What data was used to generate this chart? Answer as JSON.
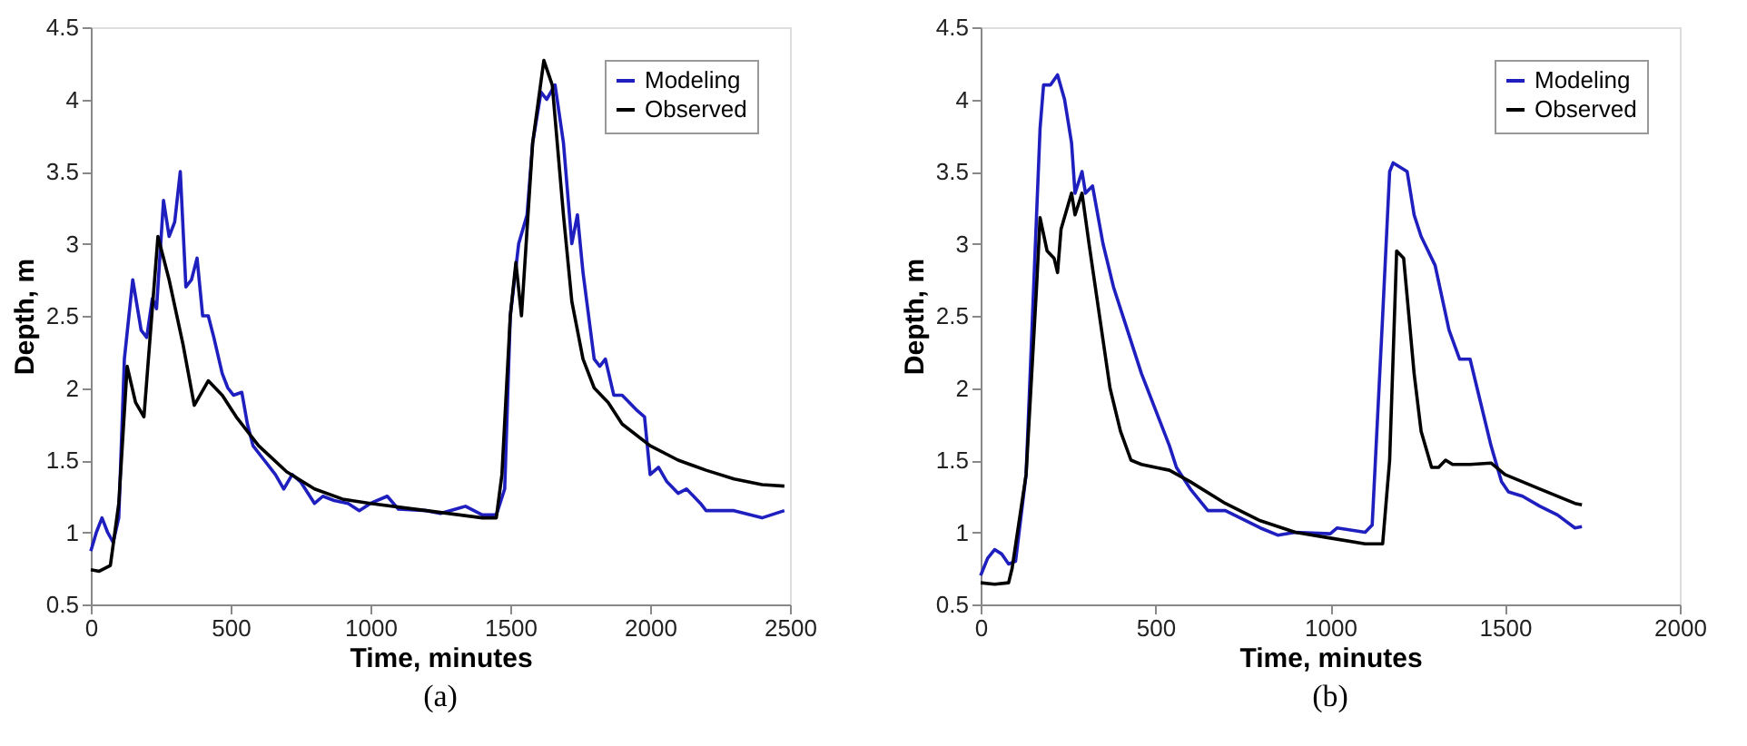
{
  "chart_data": [
    {
      "type": "line",
      "xlabel": "Time, minutes",
      "ylabel": "Depth, m",
      "annotations": [
        "(a)"
      ],
      "xlim": [
        0,
        2500
      ],
      "ylim": [
        0.5,
        4.5
      ],
      "xticks": [
        0,
        500,
        1000,
        1500,
        2000,
        2500
      ],
      "yticks": [
        0.5,
        1,
        1.5,
        2,
        2.5,
        3,
        3.5,
        4,
        4.5
      ],
      "grid": false,
      "legend": "top right",
      "marker": "none",
      "line_style": "solid",
      "series": [
        {
          "name": "Modeling",
          "color": "#1f1fbf",
          "x": [
            0,
            20,
            40,
            60,
            80,
            100,
            120,
            150,
            180,
            200,
            220,
            235,
            260,
            280,
            300,
            320,
            340,
            360,
            380,
            400,
            420,
            440,
            470,
            490,
            510,
            540,
            560,
            580,
            620,
            660,
            690,
            720,
            750,
            800,
            830,
            870,
            920,
            960,
            1000,
            1060,
            1100,
            1200,
            1250,
            1340,
            1400,
            1450,
            1480,
            1500,
            1530,
            1560,
            1580,
            1610,
            1630,
            1660,
            1690,
            1720,
            1740,
            1760,
            1800,
            1820,
            1840,
            1870,
            1900,
            1950,
            1980,
            2000,
            2030,
            2060,
            2100,
            2130,
            2180,
            2200,
            2300,
            2400,
            2480
          ],
          "values": [
            0.87,
            1.0,
            1.1,
            1.0,
            0.93,
            1.1,
            2.2,
            2.75,
            2.4,
            2.35,
            2.62,
            2.55,
            3.3,
            3.05,
            3.15,
            3.5,
            2.7,
            2.75,
            2.9,
            2.5,
            2.5,
            2.35,
            2.1,
            2.0,
            1.95,
            1.97,
            1.75,
            1.6,
            1.5,
            1.4,
            1.3,
            1.4,
            1.35,
            1.2,
            1.25,
            1.22,
            1.2,
            1.15,
            1.2,
            1.25,
            1.16,
            1.15,
            1.13,
            1.18,
            1.12,
            1.12,
            1.3,
            2.5,
            3.0,
            3.2,
            3.7,
            4.05,
            4.0,
            4.1,
            3.7,
            3.0,
            3.2,
            2.8,
            2.2,
            2.15,
            2.2,
            1.95,
            1.95,
            1.85,
            1.8,
            1.4,
            1.45,
            1.35,
            1.27,
            1.3,
            1.2,
            1.15,
            1.15,
            1.1,
            1.15
          ]
        },
        {
          "name": "Observed",
          "color": "#000000",
          "x": [
            0,
            30,
            70,
            100,
            130,
            160,
            190,
            240,
            280,
            330,
            370,
            420,
            470,
            520,
            600,
            700,
            800,
            900,
            1000,
            1200,
            1400,
            1450,
            1470,
            1500,
            1520,
            1540,
            1580,
            1620,
            1650,
            1690,
            1720,
            1760,
            1800,
            1850,
            1900,
            2000,
            2100,
            2200,
            2300,
            2400,
            2480
          ],
          "values": [
            0.74,
            0.73,
            0.77,
            1.2,
            2.15,
            1.9,
            1.8,
            3.05,
            2.75,
            2.3,
            1.88,
            2.05,
            1.95,
            1.8,
            1.6,
            1.42,
            1.3,
            1.23,
            1.2,
            1.15,
            1.1,
            1.1,
            1.4,
            2.5,
            2.87,
            2.5,
            3.7,
            4.27,
            4.1,
            3.2,
            2.6,
            2.2,
            2.0,
            1.9,
            1.75,
            1.6,
            1.5,
            1.43,
            1.37,
            1.33,
            1.32
          ]
        }
      ]
    },
    {
      "type": "line",
      "xlabel": "Time, minutes",
      "ylabel": "Depth, m",
      "annotations": [
        "(b)"
      ],
      "xlim": [
        0,
        2000
      ],
      "ylim": [
        0.5,
        4.5
      ],
      "xticks": [
        0,
        500,
        1000,
        1500,
        2000
      ],
      "yticks": [
        0.5,
        1,
        1.5,
        2,
        2.5,
        3,
        3.5,
        4,
        4.5
      ],
      "grid": false,
      "legend": "top right",
      "marker": "none",
      "line_style": "solid",
      "series": [
        {
          "name": "Modeling",
          "color": "#1f1fbf",
          "x": [
            0,
            20,
            40,
            60,
            80,
            100,
            130,
            150,
            170,
            180,
            200,
            220,
            240,
            260,
            270,
            290,
            300,
            320,
            350,
            380,
            420,
            460,
            500,
            540,
            560,
            600,
            650,
            700,
            800,
            850,
            900,
            1000,
            1020,
            1100,
            1120,
            1150,
            1170,
            1180,
            1220,
            1240,
            1260,
            1300,
            1340,
            1370,
            1400,
            1420,
            1460,
            1490,
            1510,
            1550,
            1600,
            1650,
            1700,
            1720
          ],
          "values": [
            0.7,
            0.82,
            0.88,
            0.85,
            0.78,
            0.8,
            1.4,
            2.6,
            3.8,
            4.1,
            4.1,
            4.17,
            4.0,
            3.7,
            3.35,
            3.5,
            3.35,
            3.4,
            3.0,
            2.7,
            2.4,
            2.1,
            1.85,
            1.6,
            1.45,
            1.3,
            1.15,
            1.15,
            1.03,
            0.98,
            1.0,
            0.99,
            1.03,
            1.0,
            1.05,
            2.5,
            3.5,
            3.56,
            3.5,
            3.2,
            3.05,
            2.85,
            2.4,
            2.2,
            2.2,
            2.0,
            1.6,
            1.35,
            1.28,
            1.25,
            1.18,
            1.12,
            1.03,
            1.04
          ]
        },
        {
          "name": "Observed",
          "color": "#000000",
          "x": [
            0,
            40,
            80,
            90,
            130,
            160,
            170,
            190,
            210,
            220,
            230,
            260,
            270,
            290,
            310,
            340,
            370,
            400,
            430,
            460,
            500,
            540,
            600,
            700,
            800,
            900,
            1000,
            1100,
            1150,
            1170,
            1190,
            1210,
            1240,
            1260,
            1290,
            1310,
            1330,
            1350,
            1400,
            1460,
            1500,
            1600,
            1700,
            1720
          ],
          "values": [
            0.65,
            0.64,
            0.65,
            0.75,
            1.4,
            2.7,
            3.18,
            2.95,
            2.9,
            2.8,
            3.1,
            3.35,
            3.2,
            3.35,
            3.0,
            2.5,
            2.0,
            1.7,
            1.5,
            1.47,
            1.45,
            1.43,
            1.35,
            1.2,
            1.08,
            1.0,
            0.96,
            0.92,
            0.92,
            1.5,
            2.95,
            2.9,
            2.1,
            1.7,
            1.45,
            1.45,
            1.5,
            1.47,
            1.47,
            1.48,
            1.4,
            1.3,
            1.2,
            1.19
          ]
        }
      ]
    }
  ]
}
